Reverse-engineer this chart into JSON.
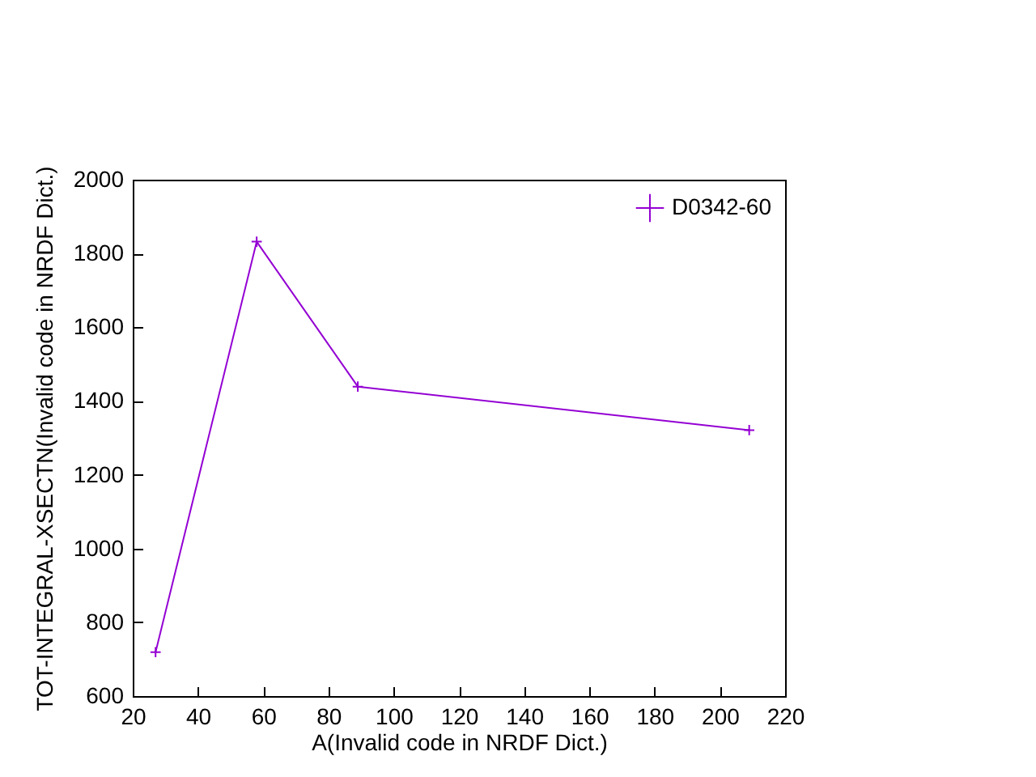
{
  "chart_data": {
    "type": "line",
    "xlabel": "A(Invalid code in NRDF Dict.)",
    "ylabel": "TOT-INTEGRAL-XSECTN(Invalid code in NRDF Dict.)",
    "x": [
      27,
      58,
      89,
      209
    ],
    "series": [
      {
        "name": "D0342-60",
        "color": "#9400d3",
        "values": [
          719,
          1832,
          1439,
          1321
        ]
      }
    ],
    "xlim": [
      20,
      220
    ],
    "xticks": [
      20,
      40,
      60,
      80,
      100,
      120,
      140,
      160,
      180,
      200,
      220
    ],
    "ylim": [
      600,
      2000
    ],
    "yticks": [
      600,
      800,
      1000,
      1200,
      1400,
      1600,
      1800,
      2000
    ],
    "grid": false,
    "legend": "top right",
    "marker": "cross",
    "line_style": "solid"
  }
}
